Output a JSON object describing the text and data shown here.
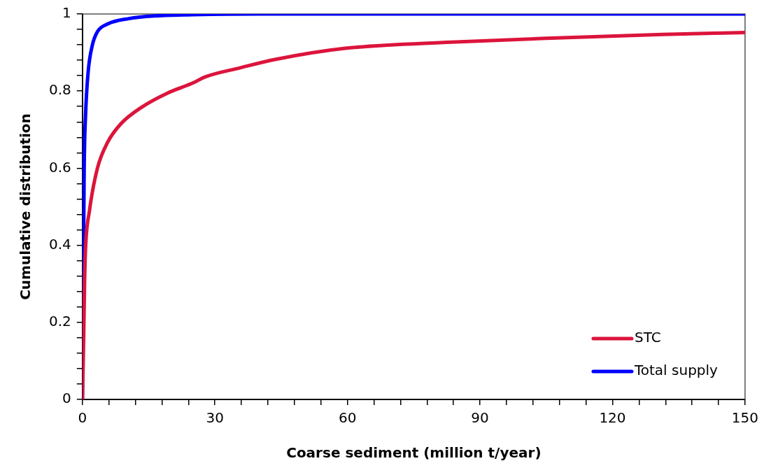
{
  "chart_data": {
    "type": "line",
    "xlabel": "Coarse sediment (million t/year)",
    "ylabel": "Cumulative distribution",
    "xlim": [
      0,
      150
    ],
    "xticks": [
      0,
      {
        "value": 6,
        "label": null
      },
      {
        "value": 12,
        "label": null
      },
      {
        "value": 18,
        "label": null
      },
      {
        "value": 24,
        "label": null
      },
      30,
      {
        "value": 36,
        "label": null
      },
      {
        "value": 42,
        "label": null
      },
      {
        "value": 48,
        "label": null
      },
      {
        "value": 54,
        "label": null
      },
      60,
      {
        "value": 66,
        "label": null
      },
      {
        "value": 72,
        "label": null
      },
      {
        "value": 78,
        "label": null
      },
      {
        "value": 84,
        "label": null
      },
      90,
      {
        "value": 96,
        "label": null
      },
      {
        "value": 102,
        "label": null
      },
      {
        "value": 108,
        "label": null
      },
      {
        "value": 114,
        "label": null
      },
      120,
      {
        "value": 126,
        "label": null
      },
      {
        "value": 132,
        "label": null
      },
      {
        "value": 138,
        "label": null
      },
      {
        "value": 144,
        "label": null
      },
      150
    ],
    "ylim": [
      0,
      1
    ],
    "yticks": [
      0,
      {
        "value": 0.04,
        "label": null
      },
      {
        "value": 0.08,
        "label": null
      },
      {
        "value": 0.12,
        "label": null
      },
      {
        "value": 0.16,
        "label": null
      },
      0.2,
      {
        "value": 0.24,
        "label": null
      },
      {
        "value": 0.28,
        "label": null
      },
      {
        "value": 0.32,
        "label": null
      },
      {
        "value": 0.36,
        "label": null
      },
      0.4,
      {
        "value": 0.44,
        "label": null
      },
      {
        "value": 0.48,
        "label": null
      },
      {
        "value": 0.52,
        "label": null
      },
      {
        "value": 0.56,
        "label": null
      },
      0.6,
      {
        "value": 0.64,
        "label": null
      },
      {
        "value": 0.68,
        "label": null
      },
      {
        "value": 0.72,
        "label": null
      },
      {
        "value": 0.76,
        "label": null
      },
      0.8,
      {
        "value": 0.84,
        "label": null
      },
      {
        "value": 0.88,
        "label": null
      },
      {
        "value": 0.92,
        "label": null
      },
      {
        "value": 0.96,
        "label": null
      },
      1
    ],
    "grid": false,
    "legend": "bottom right",
    "marker": "none",
    "line_style": "solid",
    "series": [
      {
        "name": "STC",
        "color": "#dc143c",
        "x": [
          0,
          0.3,
          0.5,
          0.7,
          1.6,
          3.4,
          5.7,
          8.7,
          13.4,
          19.3,
          25.2,
          27.6,
          35.6,
          43.6,
          59.5,
          83.5,
          107.4,
          131.3,
          150
        ],
        "values": [
          0,
          0.17,
          0.31,
          0.39,
          0.49,
          0.6,
          0.667,
          0.715,
          0.758,
          0.795,
          0.822,
          0.836,
          0.86,
          0.882,
          0.911,
          0.927,
          0.938,
          0.947,
          0.952
        ]
      },
      {
        "name": "Total supply",
        "color": "#0000ff",
        "x": [
          0,
          0.4,
          0.7,
          1.3,
          2.2,
          3.4,
          5.7,
          10.5,
          16.4,
          25,
          40,
          150
        ],
        "values": [
          0,
          0.6,
          0.735,
          0.85,
          0.917,
          0.954,
          0.974,
          0.988,
          0.995,
          0.998,
          1,
          1
        ]
      }
    ]
  }
}
